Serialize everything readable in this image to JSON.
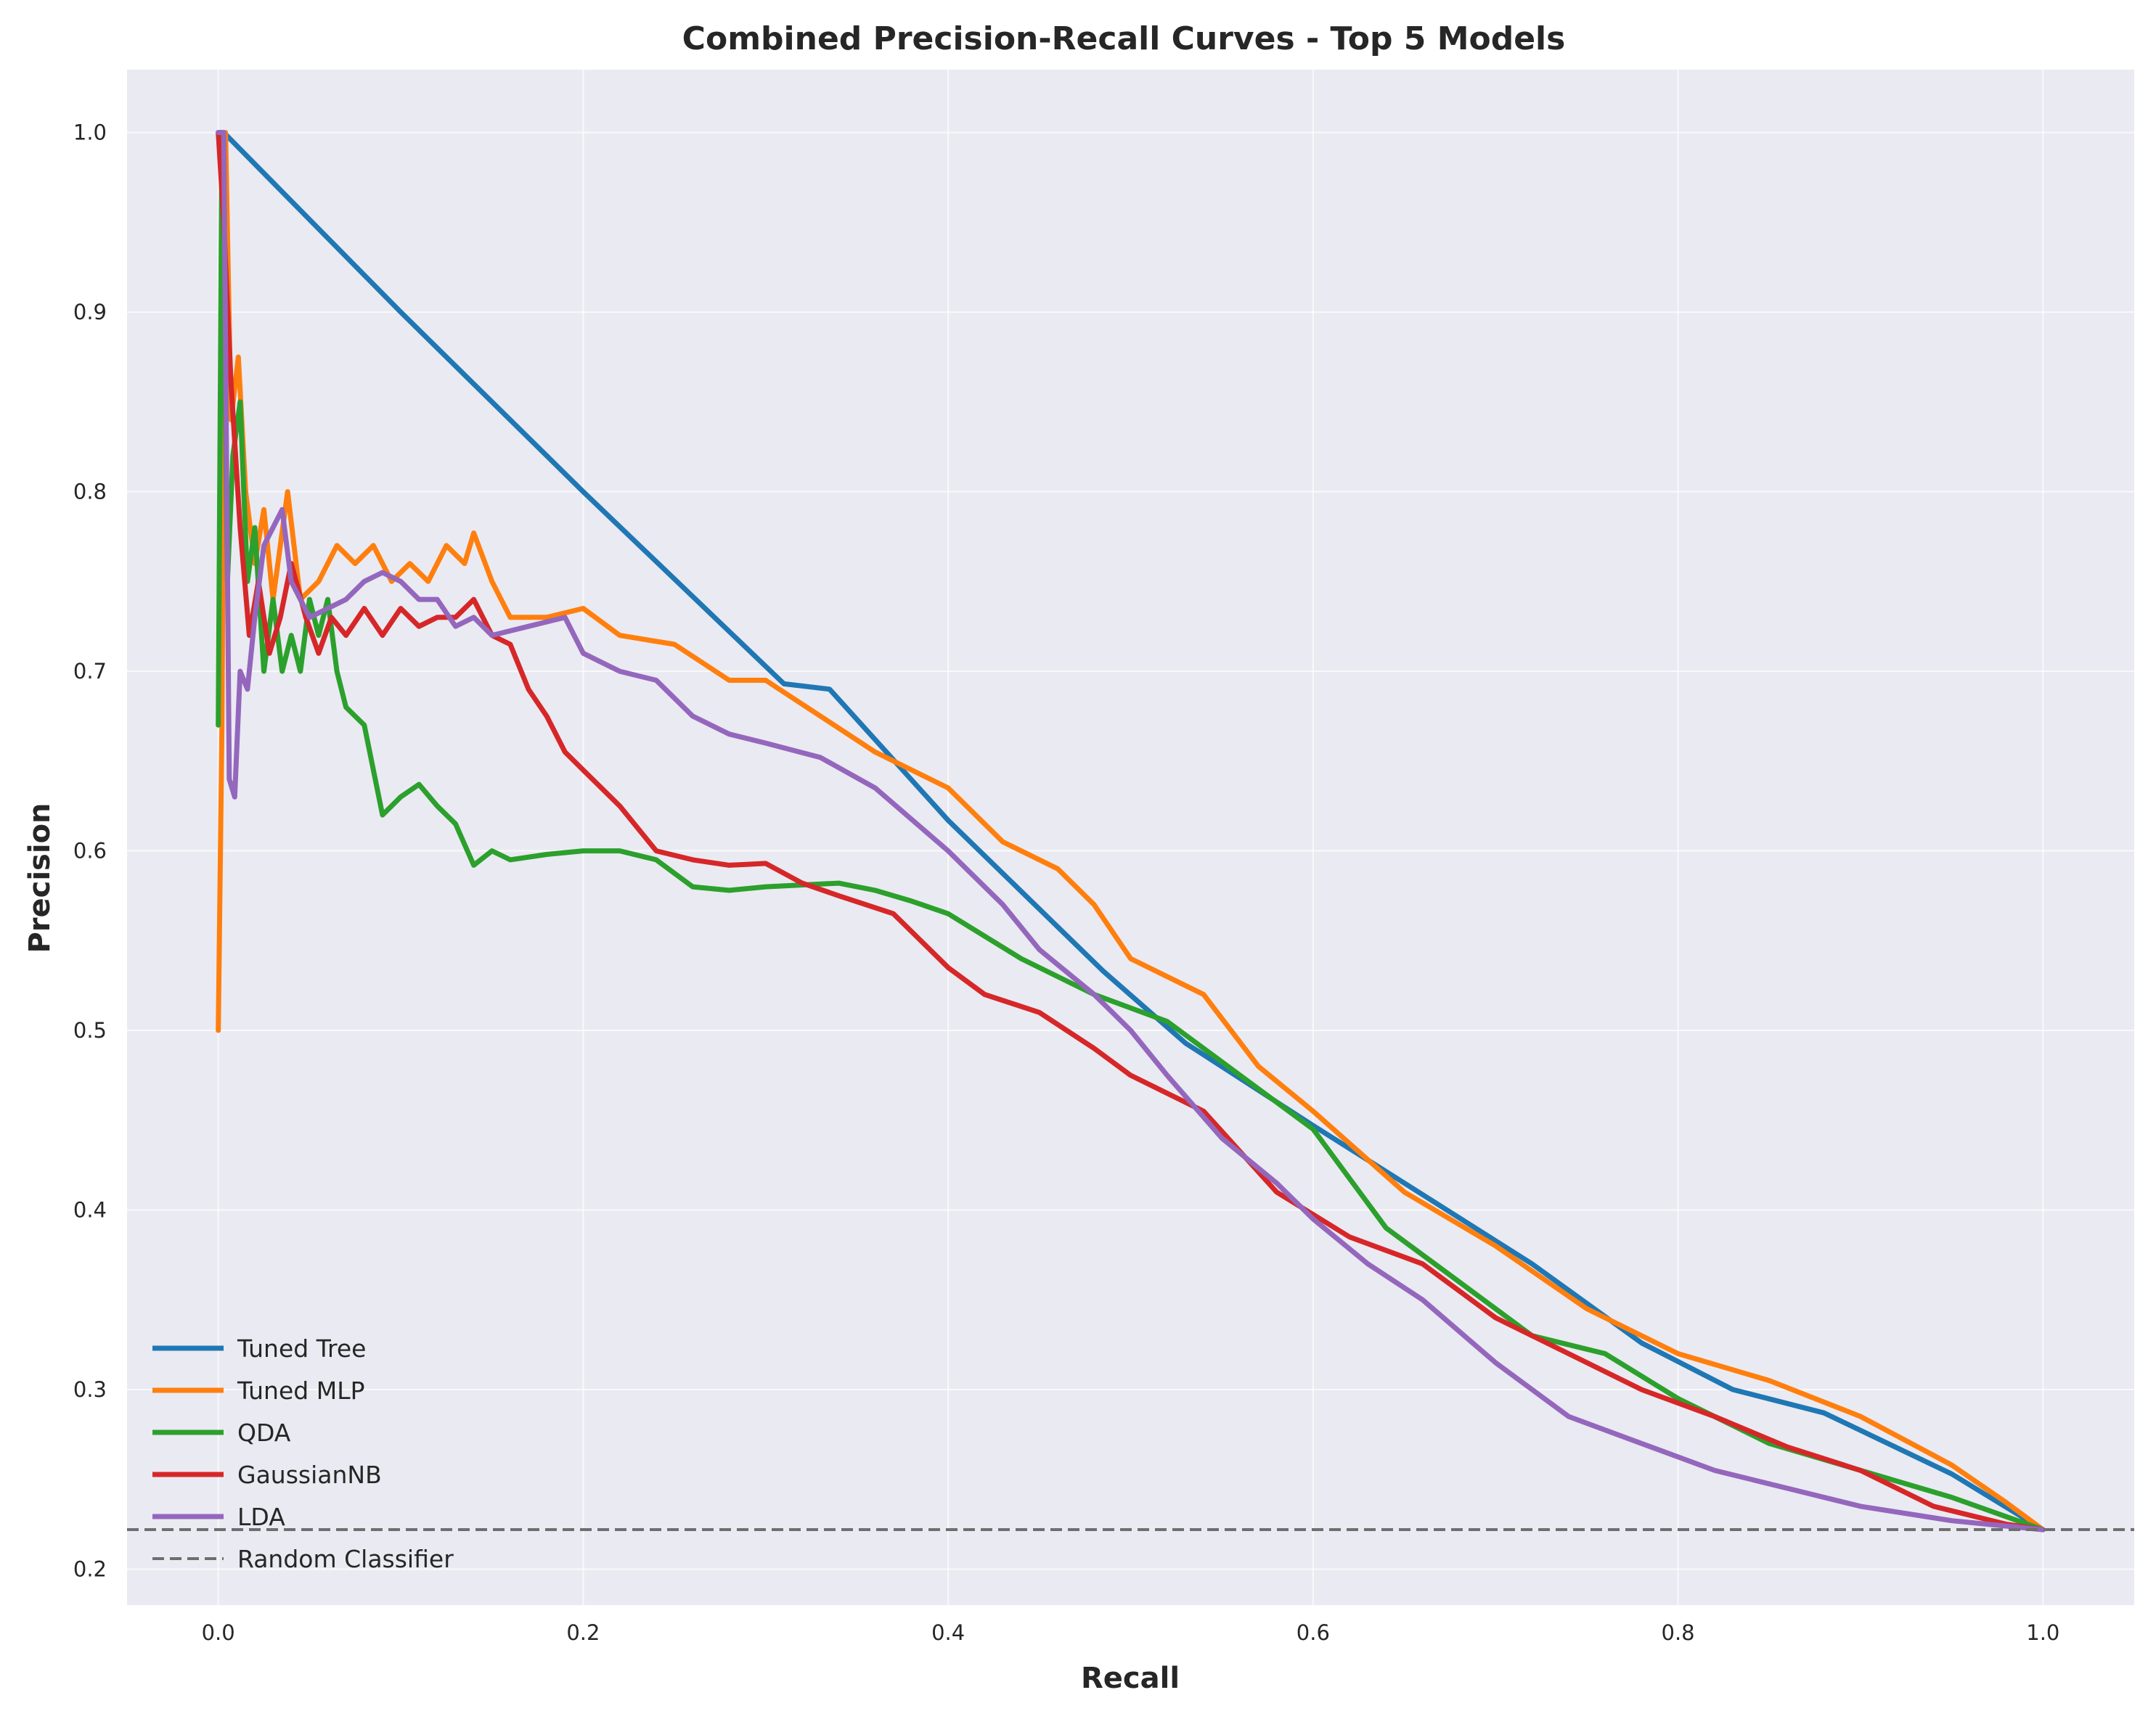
{
  "chart_data": {
    "type": "line",
    "title": "Combined Precision-Recall Curves - Top 5 Models",
    "xlabel": "Recall",
    "ylabel": "Precision",
    "xlim": [
      -0.05,
      1.05
    ],
    "ylim": [
      0.18,
      1.035
    ],
    "xticks": [
      0.0,
      0.2,
      0.4,
      0.6,
      0.8,
      1.0
    ],
    "xtick_labels": [
      "0.0",
      "0.2",
      "0.4",
      "0.6",
      "0.8",
      "1.0"
    ],
    "yticks": [
      0.2,
      0.3,
      0.4,
      0.5,
      0.6,
      0.7,
      0.8,
      0.9,
      1.0
    ],
    "ytick_labels": [
      "0.2",
      "0.3",
      "0.4",
      "0.5",
      "0.6",
      "0.7",
      "0.8",
      "0.9",
      "1.0"
    ],
    "grid": true,
    "legend_position": "lower-left",
    "background": "#eaeaf2",
    "series": [
      {
        "name": "Tuned Tree",
        "color": "#1f77b4",
        "x": [
          0.0,
          0.003,
          0.1,
          0.2,
          0.31,
          0.335,
          0.4,
          0.485,
          0.53,
          0.6,
          0.65,
          0.72,
          0.78,
          0.83,
          0.88,
          0.95,
          1.0
        ],
        "y": [
          1.0,
          1.0,
          0.9,
          0.8,
          0.693,
          0.69,
          0.617,
          0.533,
          0.493,
          0.447,
          0.415,
          0.37,
          0.326,
          0.3,
          0.287,
          0.253,
          0.222
        ]
      },
      {
        "name": "Tuned MLP",
        "color": "#ff7f0e",
        "x": [
          0.0,
          0.002,
          0.004,
          0.007,
          0.011,
          0.015,
          0.02,
          0.025,
          0.03,
          0.038,
          0.045,
          0.055,
          0.065,
          0.075,
          0.085,
          0.095,
          0.105,
          0.115,
          0.125,
          0.135,
          0.14,
          0.15,
          0.16,
          0.18,
          0.2,
          0.22,
          0.25,
          0.28,
          0.3,
          0.33,
          0.36,
          0.4,
          0.43,
          0.46,
          0.48,
          0.5,
          0.54,
          0.57,
          0.6,
          0.65,
          0.7,
          0.75,
          0.8,
          0.85,
          0.9,
          0.95,
          0.98,
          1.0
        ],
        "y": [
          0.5,
          0.67,
          1.0,
          0.84,
          0.875,
          0.8,
          0.76,
          0.79,
          0.74,
          0.8,
          0.74,
          0.75,
          0.77,
          0.76,
          0.77,
          0.75,
          0.76,
          0.75,
          0.77,
          0.76,
          0.777,
          0.75,
          0.73,
          0.73,
          0.735,
          0.72,
          0.715,
          0.695,
          0.695,
          0.675,
          0.655,
          0.635,
          0.605,
          0.59,
          0.57,
          0.54,
          0.52,
          0.48,
          0.455,
          0.41,
          0.38,
          0.345,
          0.32,
          0.305,
          0.285,
          0.258,
          0.237,
          0.222
        ]
      },
      {
        "name": "QDA",
        "color": "#2ca02c",
        "x": [
          0.0,
          0.002,
          0.005,
          0.008,
          0.012,
          0.016,
          0.02,
          0.025,
          0.03,
          0.035,
          0.04,
          0.045,
          0.05,
          0.055,
          0.06,
          0.065,
          0.07,
          0.08,
          0.09,
          0.1,
          0.11,
          0.12,
          0.13,
          0.14,
          0.15,
          0.16,
          0.18,
          0.2,
          0.22,
          0.24,
          0.26,
          0.28,
          0.3,
          0.34,
          0.36,
          0.38,
          0.4,
          0.44,
          0.48,
          0.52,
          0.56,
          0.6,
          0.64,
          0.68,
          0.72,
          0.76,
          0.8,
          0.85,
          0.9,
          0.95,
          1.0
        ],
        "y": [
          0.67,
          1.0,
          0.75,
          0.82,
          0.85,
          0.75,
          0.78,
          0.7,
          0.74,
          0.7,
          0.72,
          0.7,
          0.74,
          0.72,
          0.74,
          0.7,
          0.68,
          0.67,
          0.62,
          0.63,
          0.637,
          0.625,
          0.615,
          0.592,
          0.6,
          0.595,
          0.598,
          0.6,
          0.6,
          0.595,
          0.58,
          0.578,
          0.58,
          0.582,
          0.578,
          0.572,
          0.565,
          0.54,
          0.52,
          0.505,
          0.475,
          0.445,
          0.39,
          0.36,
          0.33,
          0.32,
          0.295,
          0.27,
          0.255,
          0.24,
          0.222
        ]
      },
      {
        "name": "GaussianNB",
        "color": "#d62728",
        "x": [
          0.0,
          0.003,
          0.007,
          0.012,
          0.017,
          0.022,
          0.028,
          0.034,
          0.04,
          0.048,
          0.055,
          0.062,
          0.07,
          0.08,
          0.09,
          0.1,
          0.11,
          0.12,
          0.13,
          0.14,
          0.15,
          0.16,
          0.17,
          0.18,
          0.19,
          0.2,
          0.22,
          0.24,
          0.26,
          0.28,
          0.3,
          0.32,
          0.34,
          0.37,
          0.4,
          0.42,
          0.45,
          0.48,
          0.5,
          0.54,
          0.58,
          0.62,
          0.66,
          0.7,
          0.74,
          0.78,
          0.82,
          0.86,
          0.9,
          0.94,
          0.98,
          1.0
        ],
        "y": [
          1.0,
          0.95,
          0.86,
          0.78,
          0.72,
          0.75,
          0.71,
          0.73,
          0.76,
          0.73,
          0.71,
          0.73,
          0.72,
          0.735,
          0.72,
          0.735,
          0.725,
          0.73,
          0.73,
          0.74,
          0.72,
          0.715,
          0.69,
          0.675,
          0.655,
          0.645,
          0.625,
          0.6,
          0.595,
          0.592,
          0.593,
          0.582,
          0.575,
          0.565,
          0.535,
          0.52,
          0.51,
          0.49,
          0.475,
          0.455,
          0.41,
          0.385,
          0.37,
          0.34,
          0.32,
          0.3,
          0.285,
          0.268,
          0.255,
          0.235,
          0.225,
          0.222
        ]
      },
      {
        "name": "LDA",
        "color": "#9467bd",
        "x": [
          0.0,
          0.003,
          0.006,
          0.009,
          0.012,
          0.016,
          0.02,
          0.025,
          0.03,
          0.035,
          0.04,
          0.045,
          0.05,
          0.06,
          0.07,
          0.08,
          0.09,
          0.1,
          0.11,
          0.12,
          0.13,
          0.14,
          0.15,
          0.17,
          0.19,
          0.2,
          0.22,
          0.24,
          0.26,
          0.28,
          0.3,
          0.33,
          0.36,
          0.4,
          0.43,
          0.45,
          0.48,
          0.5,
          0.52,
          0.55,
          0.58,
          0.6,
          0.63,
          0.66,
          0.7,
          0.74,
          0.78,
          0.82,
          0.86,
          0.9,
          0.95,
          1.0
        ],
        "y": [
          1.0,
          1.0,
          0.64,
          0.63,
          0.7,
          0.69,
          0.73,
          0.77,
          0.78,
          0.79,
          0.75,
          0.74,
          0.73,
          0.735,
          0.74,
          0.75,
          0.755,
          0.75,
          0.74,
          0.74,
          0.725,
          0.73,
          0.72,
          0.725,
          0.73,
          0.71,
          0.7,
          0.695,
          0.675,
          0.665,
          0.66,
          0.652,
          0.635,
          0.6,
          0.57,
          0.545,
          0.52,
          0.5,
          0.475,
          0.44,
          0.415,
          0.395,
          0.37,
          0.35,
          0.315,
          0.285,
          0.27,
          0.255,
          0.245,
          0.235,
          0.227,
          0.222
        ]
      },
      {
        "name": "Random Classifier",
        "color": "#6e6e6e",
        "dashed": true,
        "y_constant": 0.222
      }
    ]
  }
}
